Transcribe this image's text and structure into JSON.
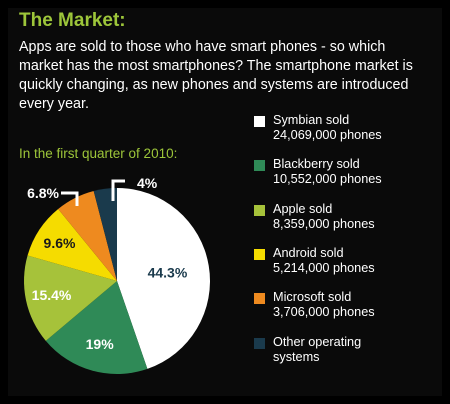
{
  "header": {
    "title": "The Market:",
    "intro": "Apps are sold to those who have smart phones - so which market has the most smartphones? The smartphone market is quickly changing, as new phones and systems are introduced every year.",
    "subtitle": "In the first quarter of 2010:"
  },
  "colors": {
    "accent": "#9dc63a",
    "background": "#0a0a0a",
    "text": "#ffffff"
  },
  "legend": [
    {
      "name": "Symbian sold",
      "detail": "24,069,000 phones",
      "color": "#ffffff"
    },
    {
      "name": "Blackberry sold",
      "detail": "10,552,000 phones",
      "color": "#2f8a57"
    },
    {
      "name": "Apple sold",
      "detail": "8,359,000 phones",
      "color": "#a6c23a"
    },
    {
      "name": "Android sold",
      "detail": "5,214,000 phones",
      "color": "#f5dc00"
    },
    {
      "name": "Microsoft sold",
      "detail": "3,706,000 phones",
      "color": "#ee8a1f"
    },
    {
      "name": "Other operating",
      "detail": "systems",
      "color": "#1a3a4c"
    }
  ],
  "chart_data": {
    "type": "pie",
    "start_angle_deg": 0,
    "direction": "clockwise",
    "slices": [
      {
        "label": "Symbian",
        "value": 44.3,
        "display": "44.3%",
        "color": "#ffffff",
        "label_color": "#1a3a4c"
      },
      {
        "label": "Blackberry",
        "value": 19,
        "display": "19%",
        "color": "#2f8a57",
        "label_color": "#ffffff"
      },
      {
        "label": "Apple",
        "value": 15.4,
        "display": "15.4%",
        "color": "#a6c23a",
        "label_color": "#ffffff"
      },
      {
        "label": "Android",
        "value": 9.6,
        "display": "9.6%",
        "color": "#f5dc00",
        "label_color": "#1a1a1a"
      },
      {
        "label": "Microsoft",
        "value": 6.8,
        "display": "6.8%",
        "color": "#ee8a1f",
        "label_color": "#ffffff"
      },
      {
        "label": "Other operating systems",
        "value": 4,
        "display": "4%",
        "color": "#1a3a4c",
        "label_color": "#ffffff"
      }
    ]
  }
}
